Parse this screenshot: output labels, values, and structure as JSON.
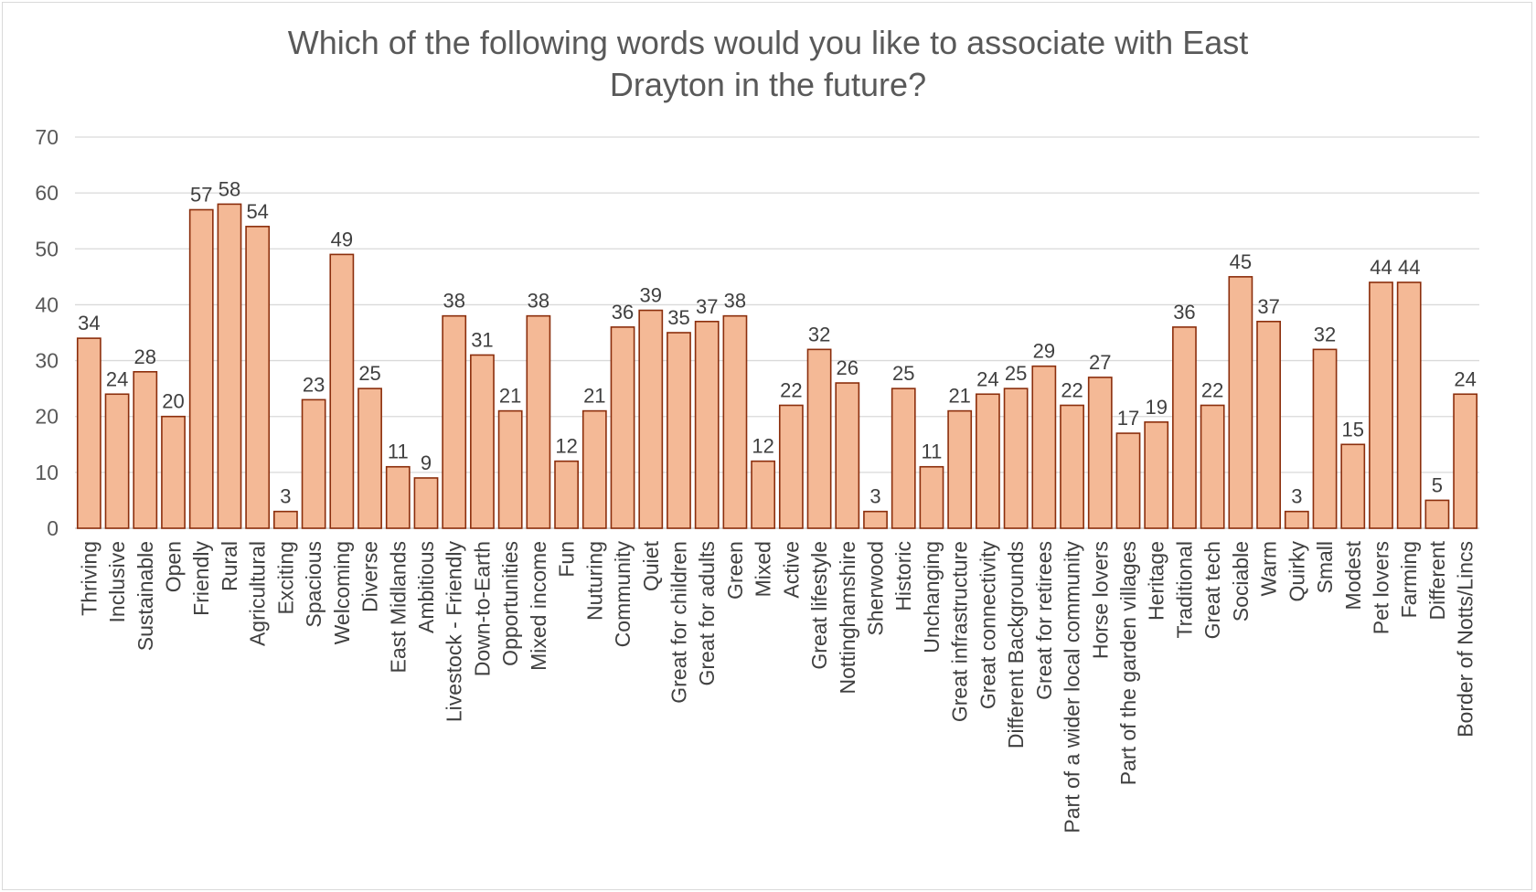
{
  "chart_data": {
    "type": "bar",
    "title": "Which of the following words would you like to associate with East Drayton in the future?",
    "title_lines": [
      "Which of the following words would you like to associate with East",
      "Drayton in the future?"
    ],
    "xlabel": "",
    "ylabel": "",
    "ylim": [
      0,
      70
    ],
    "yticks": [
      0,
      10,
      20,
      30,
      40,
      50,
      60,
      70
    ],
    "grid": true,
    "legend": "none",
    "bar_color": "#f4b996",
    "bar_edge_color": "#8b2e0c",
    "data_labels": true,
    "categories": [
      "Thriving",
      "Inclusive",
      "Sustainable",
      "Open",
      "Friendly",
      "Rural",
      "Agricultural",
      "Exciting",
      "Spacious",
      "Welcoming",
      "Diverse",
      "East Midlands",
      "Ambitious",
      "Livestock - Friendly",
      "Down-to-Earth",
      "Opportunities",
      "Mixed income",
      "Fun",
      "Nuturing",
      "Community",
      "Quiet",
      "Great for children",
      "Great for adults",
      "Green",
      "Mixed",
      "Active",
      "Great lifestyle",
      "Nottinghamshire",
      "Sherwood",
      "Historic",
      "Unchanging",
      "Great infrastructure",
      "Great connectivity",
      "Different Backgrounds",
      "Great for retirees",
      "Part of a wider local community",
      "Horse lovers",
      "Part of the garden villages",
      "Heritage",
      "Traditional",
      "Great tech",
      "Sociable",
      "Warm",
      "Quirky",
      "Small",
      "Modest",
      "Pet lovers",
      "Farming",
      "Different",
      "Border of Notts/Lincs"
    ],
    "values": [
      34,
      24,
      28,
      20,
      57,
      58,
      54,
      3,
      23,
      49,
      25,
      11,
      9,
      38,
      31,
      21,
      38,
      12,
      21,
      36,
      39,
      35,
      37,
      38,
      12,
      22,
      32,
      26,
      3,
      25,
      11,
      21,
      24,
      25,
      29,
      22,
      27,
      17,
      19,
      36,
      22,
      45,
      37,
      3,
      32,
      15,
      44,
      44,
      5,
      24
    ]
  }
}
